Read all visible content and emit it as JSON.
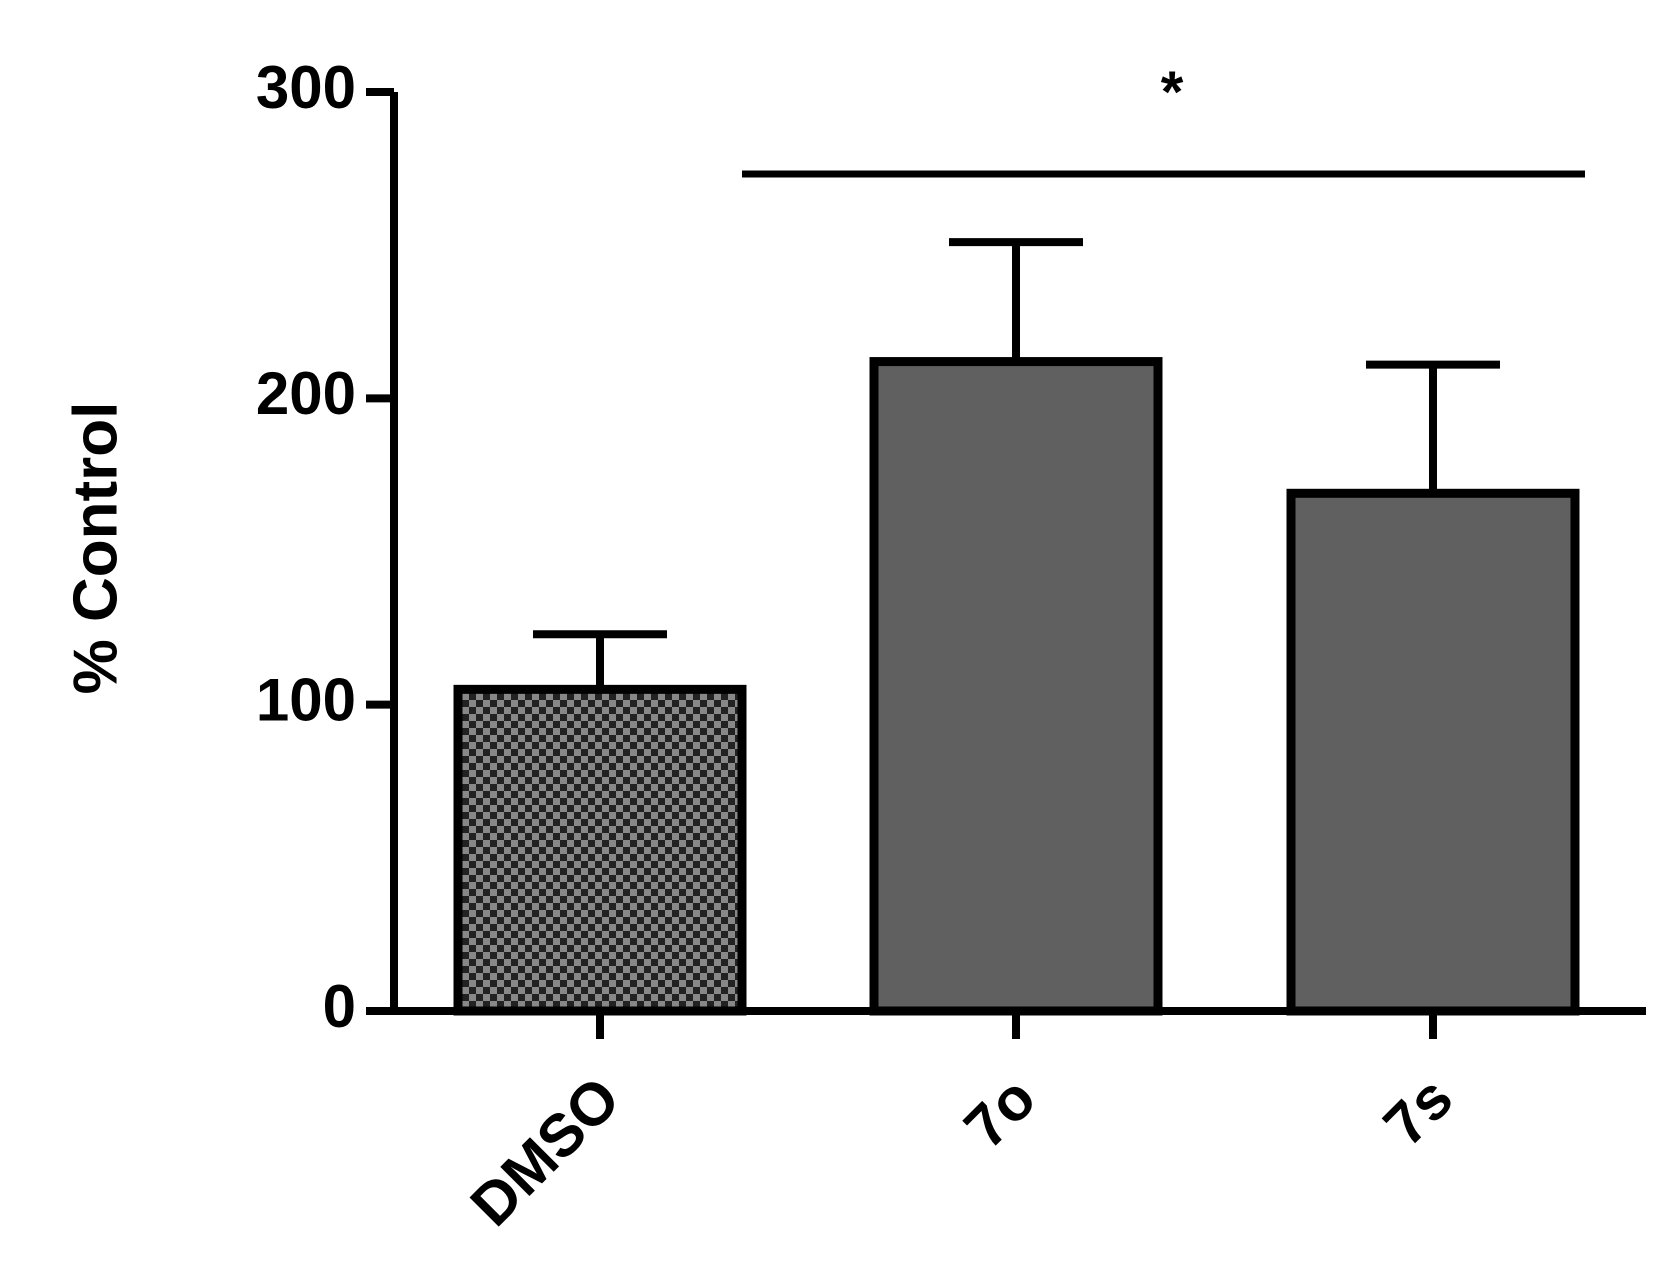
{
  "chart_data": {
    "type": "bar",
    "y_label": "% Control",
    "categories": [
      "DMSO",
      "7o",
      "7s"
    ],
    "values": [
      105,
      212,
      169
    ],
    "errors": [
      18,
      39,
      42
    ],
    "colors": [
      "#606060",
      "#606060",
      "#606060"
    ],
    "fill_patterns": [
      "checker",
      "solid",
      "solid"
    ],
    "annotation": "*",
    "ylim": [
      0,
      300
    ],
    "yticks": [
      0,
      100,
      200,
      300
    ],
    "grid": false
  }
}
